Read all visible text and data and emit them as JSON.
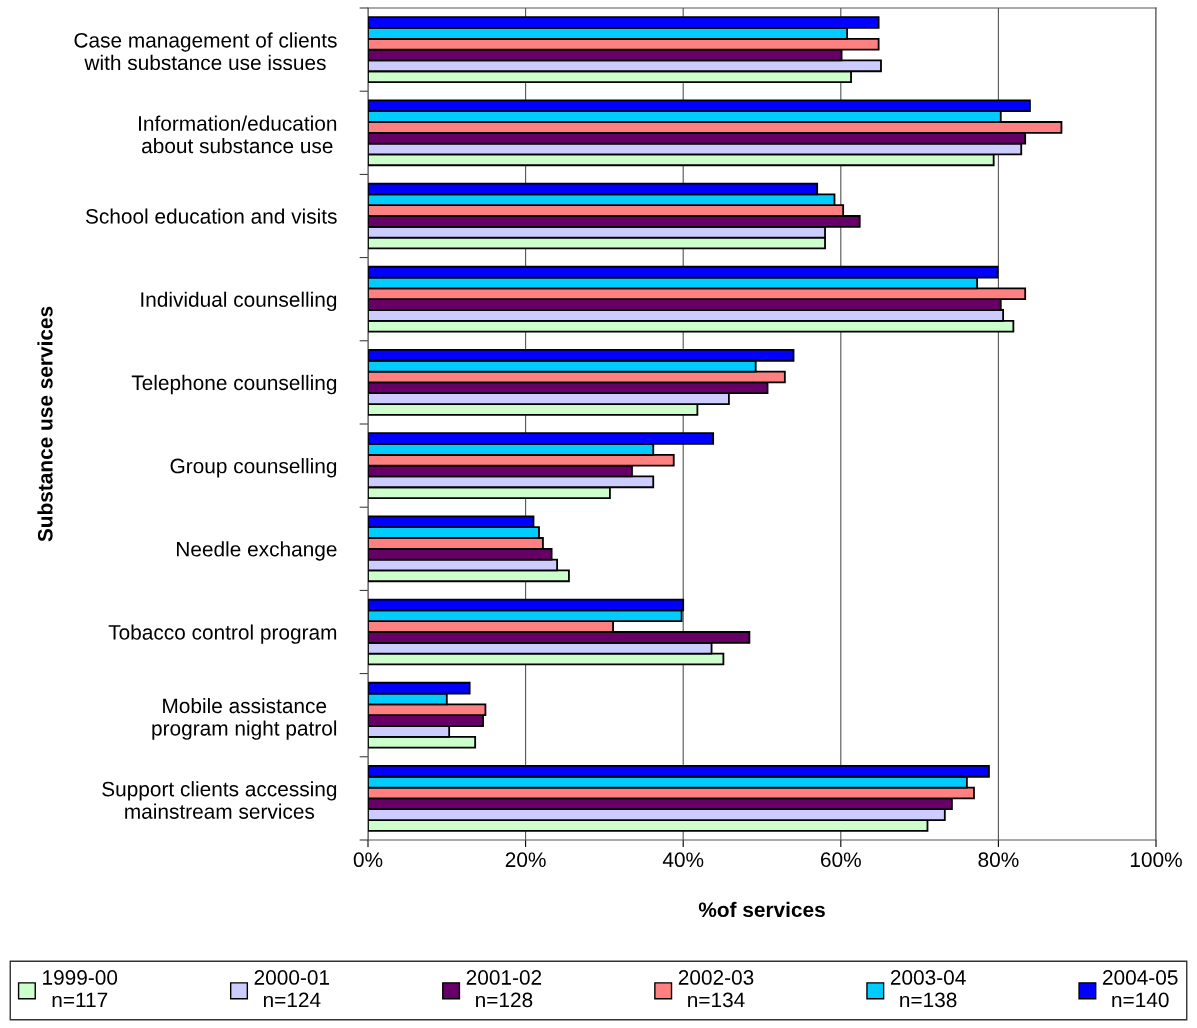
{
  "chart_data": {
    "type": "bar",
    "orientation": "horizontal",
    "xlabel": "%of services",
    "ylabel": "Substance use services",
    "categories": [
      "Case management of clients\nwith substance use issues",
      "Information/education\nabout substance use",
      "School education and visits",
      "Individual counselling",
      "Telephone counselling",
      "Group counselling",
      "Needle exchange",
      "Tobacco control program",
      "Mobile assistance\nprogram night patrol",
      "Support clients accessing\nmainstream services"
    ],
    "series": [
      {
        "name": "1999-00\nn=117",
        "color": "#ccffcc",
        "values": [
          61.3,
          79.4,
          58.0,
          81.9,
          41.8,
          30.7,
          25.5,
          45.1,
          13.6,
          71.0
        ]
      },
      {
        "name": "2000-01\nn=124",
        "color": "#ccccff",
        "values": [
          65.1,
          82.9,
          58.0,
          80.6,
          45.8,
          36.2,
          24.0,
          43.6,
          10.3,
          73.2
        ]
      },
      {
        "name": "2001-02\nn=128",
        "color": "#660066",
        "values": [
          60.1,
          83.4,
          62.4,
          80.3,
          50.7,
          33.5,
          23.3,
          48.4,
          14.6,
          74.1
        ]
      },
      {
        "name": "2002-03\nn=134",
        "color": "#ff8080",
        "values": [
          64.8,
          88.0,
          60.3,
          83.4,
          52.9,
          38.8,
          22.2,
          31.1,
          14.9,
          76.9
        ]
      },
      {
        "name": "2003-04\nn=138",
        "color": "#00ccff",
        "values": [
          60.8,
          80.3,
          59.2,
          77.3,
          49.2,
          36.2,
          21.7,
          39.8,
          10.0,
          76.0
        ]
      },
      {
        "name": "2004-05\nn=140",
        "color": "#0000ff",
        "values": [
          64.8,
          84.0,
          57.0,
          79.9,
          54.0,
          43.8,
          21.0,
          40.0,
          12.9,
          78.8
        ]
      }
    ],
    "xlim": [
      0,
      100
    ],
    "xticks": [
      {
        "value": 0,
        "label": "0%"
      },
      {
        "value": 20,
        "label": "20%"
      },
      {
        "value": 40,
        "label": "40%"
      },
      {
        "value": 60,
        "label": "60%"
      },
      {
        "value": 80,
        "label": "80%"
      },
      {
        "value": 100,
        "label": "100%"
      }
    ],
    "grid": "x",
    "legend": "bottom"
  }
}
